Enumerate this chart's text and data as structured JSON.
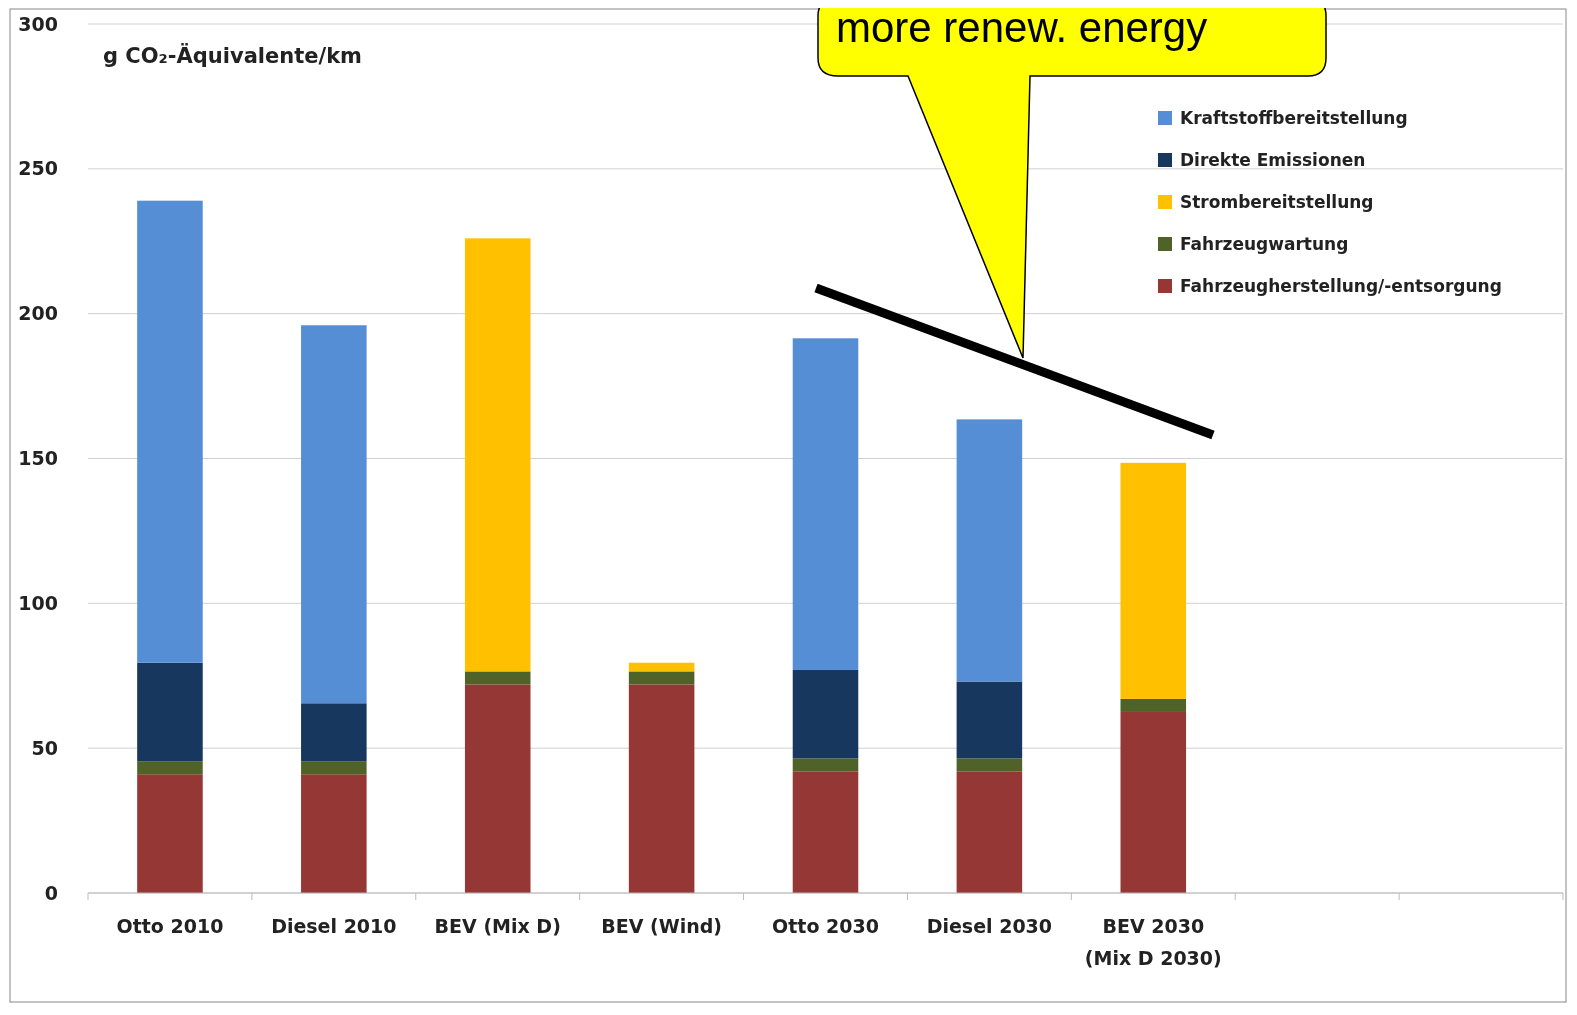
{
  "chart_data": {
    "type": "bar",
    "stacked": true,
    "ylabel": "g CO₂-Äquivalente/km",
    "categories": [
      "Otto 2010",
      "Diesel 2010",
      "BEV (Mix D)",
      "BEV (Wind)",
      "Otto 2030",
      "Diesel 2030",
      "BEV 2030 (Mix D 2030)",
      null,
      null
    ],
    "series": [
      {
        "name": "Fahrzeugherstellung/-entsorgung",
        "color": "#953735",
        "values": [
          41,
          41,
          72,
          72,
          42,
          42,
          62.5,
          null,
          null
        ]
      },
      {
        "name": "Fahrzeugwartung",
        "color": "#4f6228",
        "values": [
          4.5,
          4.5,
          4.5,
          4.5,
          4.5,
          4.5,
          4.5,
          null,
          null
        ]
      },
      {
        "name": "Strombereitstellung",
        "color": "#ffc000",
        "values": [
          0,
          0,
          149.5,
          3,
          0,
          0,
          81.5,
          null,
          null
        ]
      },
      {
        "name": "Direkte Emissionen",
        "color": "#17375e",
        "values": [
          34,
          20,
          0,
          0,
          30.5,
          26.5,
          0,
          null,
          null
        ]
      },
      {
        "name": "Kraftstoffbereitstellung",
        "color": "#558ed5",
        "values": [
          159.5,
          130.5,
          0,
          0,
          114.5,
          90.5,
          0,
          null,
          null
        ]
      }
    ],
    "ylim": [
      0,
      300
    ],
    "yticks": [
      0,
      50,
      100,
      150,
      200,
      250,
      300
    ],
    "grid": "y",
    "legend": "top right",
    "annotations": [
      "more renew. energy"
    ]
  }
}
